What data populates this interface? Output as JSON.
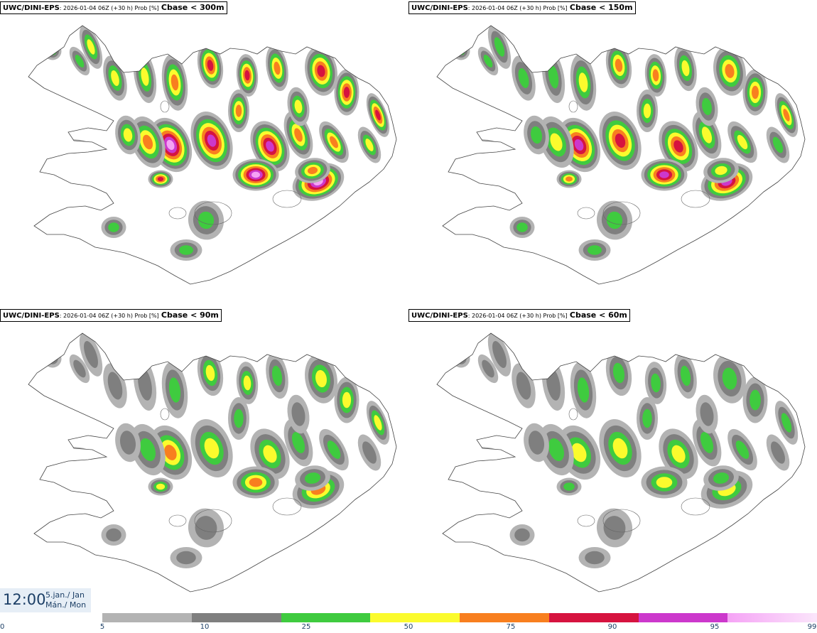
{
  "panels": [
    {
      "model": "UWC/DINI-EPS",
      "meta": ": 2026-01-04 06Z (+30 h) Prob [%]",
      "variable": "Cbase < 300m",
      "intensity": 1.0
    },
    {
      "model": "UWC/DINI-EPS",
      "meta": ": 2026-01-04 06Z (+30 h) Prob [%]",
      "variable": "Cbase < 150m",
      "intensity": 0.85
    },
    {
      "model": "UWC/DINI-EPS",
      "meta": ": 2026-01-04 06Z (+30 h) Prob [%]",
      "variable": "Cbase < 90m",
      "intensity": 0.62
    },
    {
      "model": "UWC/DINI-EPS",
      "meta": ": 2026-01-04 06Z (+30 h) Prob [%]",
      "variable": "Cbase < 60m",
      "intensity": 0.5
    }
  ],
  "valid_time": {
    "time": "12:00",
    "date_line1": "5.jan./ Jan",
    "date_line2": "Mán./ Mon"
  },
  "colorbar": {
    "ticks": [
      "0",
      "5",
      "10",
      "25",
      "50",
      "75",
      "90",
      "95",
      "99"
    ],
    "colors": [
      "#b3b3b3",
      "#7f7f7f",
      "#3fcb3f",
      "#fbfb2d",
      "#f87f1f",
      "#d6133f",
      "#cc38cc",
      "#f5a3f5"
    ]
  }
}
